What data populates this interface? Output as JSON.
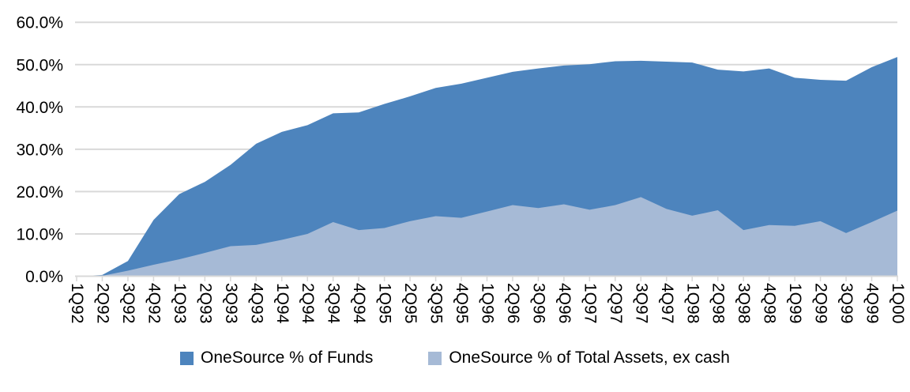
{
  "chart_data": {
    "type": "area",
    "title": "",
    "xlabel": "",
    "ylabel": "",
    "categories": [
      "1Q92",
      "2Q92",
      "3Q92",
      "4Q92",
      "1Q93",
      "2Q93",
      "3Q93",
      "4Q93",
      "1Q94",
      "2Q94",
      "3Q94",
      "4Q94",
      "1Q95",
      "2Q95",
      "3Q95",
      "4Q95",
      "1Q96",
      "2Q96",
      "3Q96",
      "4Q96",
      "1Q97",
      "2Q97",
      "3Q97",
      "4Q97",
      "1Q98",
      "2Q98",
      "3Q98",
      "4Q98",
      "1Q99",
      "2Q99",
      "3Q99",
      "4Q99",
      "1Q00"
    ],
    "series": [
      {
        "name": "OneSource % of Funds",
        "color": "#4D84BD",
        "values": [
          0.0,
          0.3,
          3.6,
          13.3,
          19.4,
          22.3,
          26.3,
          31.3,
          34.1,
          35.7,
          38.5,
          38.7,
          40.7,
          42.5,
          44.5,
          45.5,
          46.9,
          48.3,
          49.1,
          49.8,
          50.1,
          50.8,
          50.9,
          50.7,
          50.5,
          48.8,
          48.4,
          49.1,
          46.9,
          46.4,
          46.2,
          49.4,
          51.8
        ]
      },
      {
        "name": "OneSource % of Total Assets, ex cash",
        "color": "#A6BAD6",
        "values": [
          0.0,
          0.1,
          1.3,
          2.7,
          4.0,
          5.5,
          7.1,
          7.4,
          8.6,
          10.0,
          12.8,
          10.9,
          11.4,
          13.0,
          14.2,
          13.8,
          15.3,
          16.8,
          16.1,
          17.0,
          15.7,
          16.8,
          18.7,
          15.9,
          14.3,
          15.6,
          10.9,
          12.1,
          11.9,
          13.0,
          10.2,
          12.8,
          15.5
        ]
      }
    ],
    "ylim": [
      0,
      60
    ],
    "y_tick_step": 10,
    "y_tick_labels": [
      "0.0%",
      "10.0%",
      "20.0%",
      "30.0%",
      "40.0%",
      "50.0%",
      "60.0%"
    ],
    "x_tick_labels_rotation_deg": 90,
    "grid": true,
    "gridline_color": "#D9D9D9",
    "axis_line_color": "#D9D9D9",
    "legend_position": "bottom"
  }
}
